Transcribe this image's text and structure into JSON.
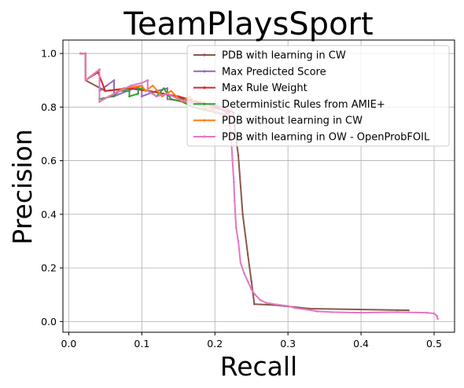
{
  "chart_data": {
    "type": "line",
    "title": "TeamPlaysSport",
    "xlabel": "Recall",
    "ylabel": "Precision",
    "xlim": [
      -0.008,
      0.528
    ],
    "ylim": [
      -0.04,
      1.05
    ],
    "x_ticks": [
      0.0,
      0.1,
      0.2,
      0.3,
      0.4,
      0.5
    ],
    "x_tick_labels": [
      "0.0",
      "0.1",
      "0.2",
      "0.3",
      "0.4",
      "0.5"
    ],
    "y_ticks": [
      0.0,
      0.2,
      0.4,
      0.6,
      0.8,
      1.0
    ],
    "y_tick_labels": [
      "0.0",
      "0.2",
      "0.4",
      "0.6",
      "0.8",
      "1.0"
    ],
    "grid": true,
    "legend_position": "top-right",
    "series": [
      {
        "name": "PDB with learning in CW",
        "color": "#8c564b",
        "points": [
          [
            0.016,
            1.0
          ],
          [
            0.023,
            1.0
          ],
          [
            0.023,
            0.9
          ],
          [
            0.05,
            0.86
          ],
          [
            0.09,
            0.87
          ],
          [
            0.13,
            0.85
          ],
          [
            0.17,
            0.82
          ],
          [
            0.21,
            0.8
          ],
          [
            0.225,
            0.78
          ],
          [
            0.228,
            0.7
          ],
          [
            0.232,
            0.62
          ],
          [
            0.238,
            0.4
          ],
          [
            0.245,
            0.25
          ],
          [
            0.25,
            0.15
          ],
          [
            0.254,
            0.065
          ],
          [
            0.28,
            0.062
          ],
          [
            0.33,
            0.048
          ],
          [
            0.465,
            0.042
          ]
        ]
      },
      {
        "name": "Max Predicted Score",
        "color": "#9467bd",
        "points": [
          [
            0.016,
            1.0
          ],
          [
            0.023,
            1.0
          ],
          [
            0.023,
            0.9
          ],
          [
            0.033,
            0.92
          ],
          [
            0.042,
            0.94
          ],
          [
            0.042,
            0.86
          ],
          [
            0.052,
            0.88
          ],
          [
            0.062,
            0.9
          ],
          [
            0.062,
            0.84
          ],
          [
            0.08,
            0.86
          ],
          [
            0.1,
            0.88
          ],
          [
            0.1,
            0.84
          ],
          [
            0.12,
            0.86
          ],
          [
            0.135,
            0.87
          ],
          [
            0.135,
            0.83
          ],
          [
            0.16,
            0.82
          ],
          [
            0.19,
            0.8
          ],
          [
            0.21,
            0.79
          ],
          [
            0.22,
            0.77
          ]
        ]
      },
      {
        "name": "Max Rule Weight",
        "color": "#d62728",
        "points": [
          [
            0.016,
            1.0
          ],
          [
            0.023,
            1.0
          ],
          [
            0.023,
            0.9
          ],
          [
            0.04,
            0.93
          ],
          [
            0.05,
            0.86
          ],
          [
            0.08,
            0.87
          ],
          [
            0.11,
            0.86
          ],
          [
            0.15,
            0.84
          ],
          [
            0.19,
            0.81
          ],
          [
            0.22,
            0.78
          ]
        ]
      },
      {
        "name": "Deterministic Rules from AMIE+",
        "color": "#2ca02c",
        "points": [
          [
            0.016,
            1.0
          ],
          [
            0.023,
            1.0
          ],
          [
            0.023,
            0.9
          ],
          [
            0.042,
            0.94
          ],
          [
            0.042,
            0.83
          ],
          [
            0.06,
            0.84
          ],
          [
            0.07,
            0.86
          ],
          [
            0.083,
            0.86
          ],
          [
            0.083,
            0.84
          ],
          [
            0.095,
            0.85
          ],
          [
            0.095,
            0.87
          ],
          [
            0.11,
            0.86
          ],
          [
            0.12,
            0.84
          ],
          [
            0.13,
            0.87
          ],
          [
            0.14,
            0.83
          ],
          [
            0.155,
            0.82
          ],
          [
            0.17,
            0.8
          ],
          [
            0.185,
            0.79
          ],
          [
            0.2,
            0.78
          ],
          [
            0.215,
            0.77
          ]
        ]
      },
      {
        "name": "PDB without learning in CW",
        "color": "#ff7f0e",
        "points": [
          [
            0.016,
            1.0
          ],
          [
            0.023,
            1.0
          ],
          [
            0.023,
            0.9
          ],
          [
            0.042,
            0.94
          ],
          [
            0.042,
            0.82
          ],
          [
            0.055,
            0.84
          ],
          [
            0.075,
            0.87
          ],
          [
            0.1,
            0.88
          ],
          [
            0.105,
            0.86
          ],
          [
            0.115,
            0.88
          ],
          [
            0.128,
            0.84
          ],
          [
            0.14,
            0.86
          ],
          [
            0.155,
            0.82
          ],
          [
            0.165,
            0.84
          ],
          [
            0.175,
            0.81
          ],
          [
            0.19,
            0.79
          ],
          [
            0.205,
            0.78
          ],
          [
            0.22,
            0.77
          ]
        ]
      },
      {
        "name": "PDB with learning in OW - OpenProbFOIL",
        "color": "#e377c2",
        "points": [
          [
            0.016,
            1.0
          ],
          [
            0.023,
            1.0
          ],
          [
            0.023,
            0.9
          ],
          [
            0.033,
            0.92
          ],
          [
            0.042,
            0.94
          ],
          [
            0.042,
            0.82
          ],
          [
            0.055,
            0.84
          ],
          [
            0.07,
            0.86
          ],
          [
            0.085,
            0.88
          ],
          [
            0.1,
            0.89
          ],
          [
            0.108,
            0.9
          ],
          [
            0.108,
            0.86
          ],
          [
            0.12,
            0.84
          ],
          [
            0.135,
            0.85
          ],
          [
            0.15,
            0.83
          ],
          [
            0.17,
            0.81
          ],
          [
            0.19,
            0.8
          ],
          [
            0.205,
            0.78
          ],
          [
            0.218,
            0.77
          ],
          [
            0.222,
            0.7
          ],
          [
            0.224,
            0.6
          ],
          [
            0.226,
            0.52
          ],
          [
            0.227,
            0.45
          ],
          [
            0.229,
            0.35
          ],
          [
            0.232,
            0.3
          ],
          [
            0.235,
            0.22
          ],
          [
            0.24,
            0.18
          ],
          [
            0.245,
            0.15
          ],
          [
            0.25,
            0.12
          ],
          [
            0.255,
            0.1
          ],
          [
            0.262,
            0.08
          ],
          [
            0.27,
            0.07
          ],
          [
            0.285,
            0.063
          ],
          [
            0.3,
            0.058
          ],
          [
            0.31,
            0.05
          ],
          [
            0.325,
            0.045
          ],
          [
            0.34,
            0.038
          ],
          [
            0.36,
            0.035
          ],
          [
            0.4,
            0.033
          ],
          [
            0.45,
            0.035
          ],
          [
            0.49,
            0.033
          ],
          [
            0.5,
            0.03
          ],
          [
            0.504,
            0.02
          ],
          [
            0.505,
            0.01
          ]
        ]
      }
    ]
  }
}
